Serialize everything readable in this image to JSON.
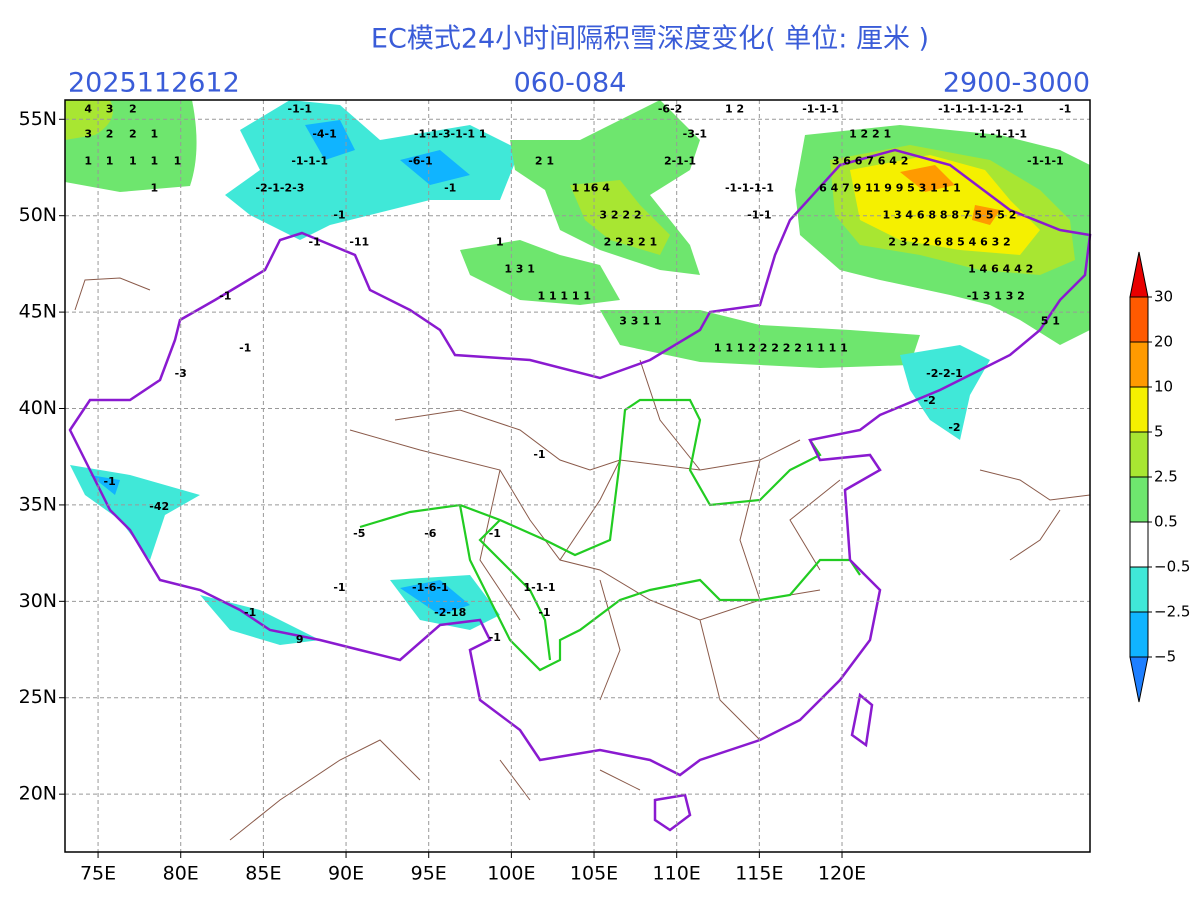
{
  "map": {
    "title": "EC模式24小时间隔积雪深度变化( 单位: 厘米 )",
    "init_time": "2025112612",
    "forecast_hours": "060-084",
    "altitude_range": "2900-3000",
    "lonlim": [
      73,
      135
    ],
    "latlim": [
      17,
      56
    ],
    "lonticks": [
      {
        "value": 75,
        "label": "75E"
      },
      {
        "value": 80,
        "label": "80E"
      },
      {
        "value": 85,
        "label": "85E"
      },
      {
        "value": 90,
        "label": "90E"
      },
      {
        "value": 95,
        "label": "95E"
      },
      {
        "value": 100,
        "label": "100E"
      },
      {
        "value": 105,
        "label": "105E"
      },
      {
        "value": 110,
        "label": "110E"
      },
      {
        "value": 115,
        "label": "115E"
      },
      {
        "value": 120,
        "label": "120E"
      }
    ],
    "latticks": [
      {
        "value": 20,
        "label": "20N"
      },
      {
        "value": 25,
        "label": "25N"
      },
      {
        "value": 30,
        "label": "30N"
      },
      {
        "value": 35,
        "label": "35N"
      },
      {
        "value": 40,
        "label": "40N"
      },
      {
        "value": 45,
        "label": "45N"
      },
      {
        "value": 50,
        "label": "50N"
      },
      {
        "value": 55,
        "label": "55N"
      }
    ],
    "grid": true,
    "colorbar": {
      "levels": [
        {
          "value": -5,
          "label": "−5"
        },
        {
          "value": -2.5,
          "label": "−2.5"
        },
        {
          "value": -0.5,
          "label": "−0.5"
        },
        0.5,
        2.5,
        5,
        10,
        20,
        30
      ],
      "colors": [
        "#1e7fff",
        "#10b4ff",
        "#40e8d8",
        "#ffffff",
        "#6ee66e",
        "#a8e632",
        "#f5f000",
        "#ff9a00",
        "#ff5a00",
        "#e80000"
      ]
    },
    "annotations": [
      {
        "text": "4",
        "lon": 74.4,
        "lat": 55.5
      },
      {
        "text": "3",
        "lon": 75.7,
        "lat": 55.5
      },
      {
        "text": "2",
        "lon": 77.1,
        "lat": 55.5
      },
      {
        "text": "3",
        "lon": 74.4,
        "lat": 54.2
      },
      {
        "text": "2",
        "lon": 75.7,
        "lat": 54.2
      },
      {
        "text": "2",
        "lon": 77.1,
        "lat": 54.2
      },
      {
        "text": "1",
        "lon": 78.4,
        "lat": 54.2
      },
      {
        "text": "1",
        "lon": 74.4,
        "lat": 52.8
      },
      {
        "text": "1",
        "lon": 75.7,
        "lat": 52.8
      },
      {
        "text": "1",
        "lon": 77.1,
        "lat": 52.8
      },
      {
        "text": "1",
        "lon": 78.4,
        "lat": 52.8
      },
      {
        "text": "1",
        "lon": 79.8,
        "lat": 52.8
      },
      {
        "text": "1",
        "lon": 78.4,
        "lat": 51.4
      },
      {
        "text": "-1-1",
        "lon": 87.2,
        "lat": 55.5
      },
      {
        "text": "-4-1",
        "lon": 88.7,
        "lat": 54.2
      },
      {
        "text": "-1-1-1",
        "lon": 87.8,
        "lat": 52.8
      },
      {
        "text": "-2-1-2-3",
        "lon": 86.0,
        "lat": 51.4
      },
      {
        "text": "-1",
        "lon": 89.6,
        "lat": 50.0
      },
      {
        "text": "-1",
        "lon": 88.1,
        "lat": 48.6
      },
      {
        "text": "-11",
        "lon": 90.8,
        "lat": 48.6
      },
      {
        "text": "-1-1-3-1-1 1",
        "lon": 96.3,
        "lat": 54.2
      },
      {
        "text": "-6-1",
        "lon": 94.5,
        "lat": 52.8
      },
      {
        "text": "-1",
        "lon": 96.3,
        "lat": 51.4
      },
      {
        "text": "2 1",
        "lon": 102.0,
        "lat": 52.8
      },
      {
        "text": "1 16 4",
        "lon": 104.8,
        "lat": 51.4
      },
      {
        "text": "3 2 2 2",
        "lon": 106.6,
        "lat": 50.0
      },
      {
        "text": "2 2 3 2 1",
        "lon": 107.2,
        "lat": 48.6
      },
      {
        "text": "-6-2",
        "lon": 109.6,
        "lat": 55.5
      },
      {
        "text": "-3-1",
        "lon": 111.1,
        "lat": 54.2
      },
      {
        "text": "2-1-1",
        "lon": 110.2,
        "lat": 52.8
      },
      {
        "text": "1 2",
        "lon": 113.5,
        "lat": 55.5
      },
      {
        "text": "-1-1-1",
        "lon": 118.7,
        "lat": 55.5
      },
      {
        "text": "-1-1-1-1-1-2-1",
        "lon": 128.4,
        "lat": 55.5
      },
      {
        "text": "-1",
        "lon": 133.5,
        "lat": 55.5
      },
      {
        "text": "1 2 2 1",
        "lon": 121.7,
        "lat": 54.2
      },
      {
        "text": "-1 -1-1-1",
        "lon": 129.6,
        "lat": 54.2
      },
      {
        "text": "3 6 6 7 6 4 2",
        "lon": 121.7,
        "lat": 52.8
      },
      {
        "text": "-1-1-1",
        "lon": 132.3,
        "lat": 52.8
      },
      {
        "text": "-1-1-1-1",
        "lon": 114.4,
        "lat": 51.4
      },
      {
        "text": "6 4 7 9 11 9 9 5 3 1 1 1",
        "lon": 122.9,
        "lat": 51.4
      },
      {
        "text": "-1-1",
        "lon": 115.0,
        "lat": 50.0
      },
      {
        "text": "1 3 4 6 8 8 8 7 5 5 5 2",
        "lon": 126.5,
        "lat": 50.0
      },
      {
        "text": "2 3 2 2 6 8 5 4 6 3 2",
        "lon": 126.5,
        "lat": 48.6
      },
      {
        "text": "1 4 6 4 4 2",
        "lon": 129.6,
        "lat": 47.2
      },
      {
        "text": "-1 3 1 3 2",
        "lon": 129.3,
        "lat": 45.8
      },
      {
        "text": "5 1",
        "lon": 132.6,
        "lat": 44.5
      },
      {
        "text": "1",
        "lon": 99.3,
        "lat": 48.6
      },
      {
        "text": "1 3 1",
        "lon": 100.5,
        "lat": 47.2
      },
      {
        "text": "1 1 1 1 1",
        "lon": 103.2,
        "lat": 45.8
      },
      {
        "text": "3 3 1 1",
        "lon": 107.8,
        "lat": 44.5
      },
      {
        "text": "1 1 1 2 2 2 2 2 1 1 1 1",
        "lon": 116.3,
        "lat": 43.1
      },
      {
        "text": "-2-2-1",
        "lon": 126.2,
        "lat": 41.8
      },
      {
        "text": "-2",
        "lon": 125.3,
        "lat": 40.4
      },
      {
        "text": "-2",
        "lon": 126.8,
        "lat": 39.0
      },
      {
        "text": "-1",
        "lon": 82.7,
        "lat": 45.8
      },
      {
        "text": "-1",
        "lon": 83.9,
        "lat": 43.1
      },
      {
        "text": "-3",
        "lon": 80.0,
        "lat": 41.8
      },
      {
        "text": "-1",
        "lon": 75.7,
        "lat": 36.2
      },
      {
        "text": "-42",
        "lon": 78.7,
        "lat": 34.9
      },
      {
        "text": "-1",
        "lon": 101.7,
        "lat": 37.6
      },
      {
        "text": "-6",
        "lon": 95.1,
        "lat": 33.5
      },
      {
        "text": "-5",
        "lon": 90.8,
        "lat": 33.5
      },
      {
        "text": "-1",
        "lon": 99.0,
        "lat": 33.5
      },
      {
        "text": "-1",
        "lon": 89.6,
        "lat": 30.7
      },
      {
        "text": "-1-6-1",
        "lon": 95.1,
        "lat": 30.7
      },
      {
        "text": "-2-18",
        "lon": 96.3,
        "lat": 29.4
      },
      {
        "text": "1-1-1",
        "lon": 101.7,
        "lat": 30.7
      },
      {
        "text": "-1",
        "lon": 102.0,
        "lat": 29.4
      },
      {
        "text": "-1",
        "lon": 99.0,
        "lat": 28.1
      },
      {
        "text": "-1",
        "lon": 84.2,
        "lat": 29.4
      },
      {
        "text": "9",
        "lon": 87.2,
        "lat": 28.0
      }
    ]
  }
}
